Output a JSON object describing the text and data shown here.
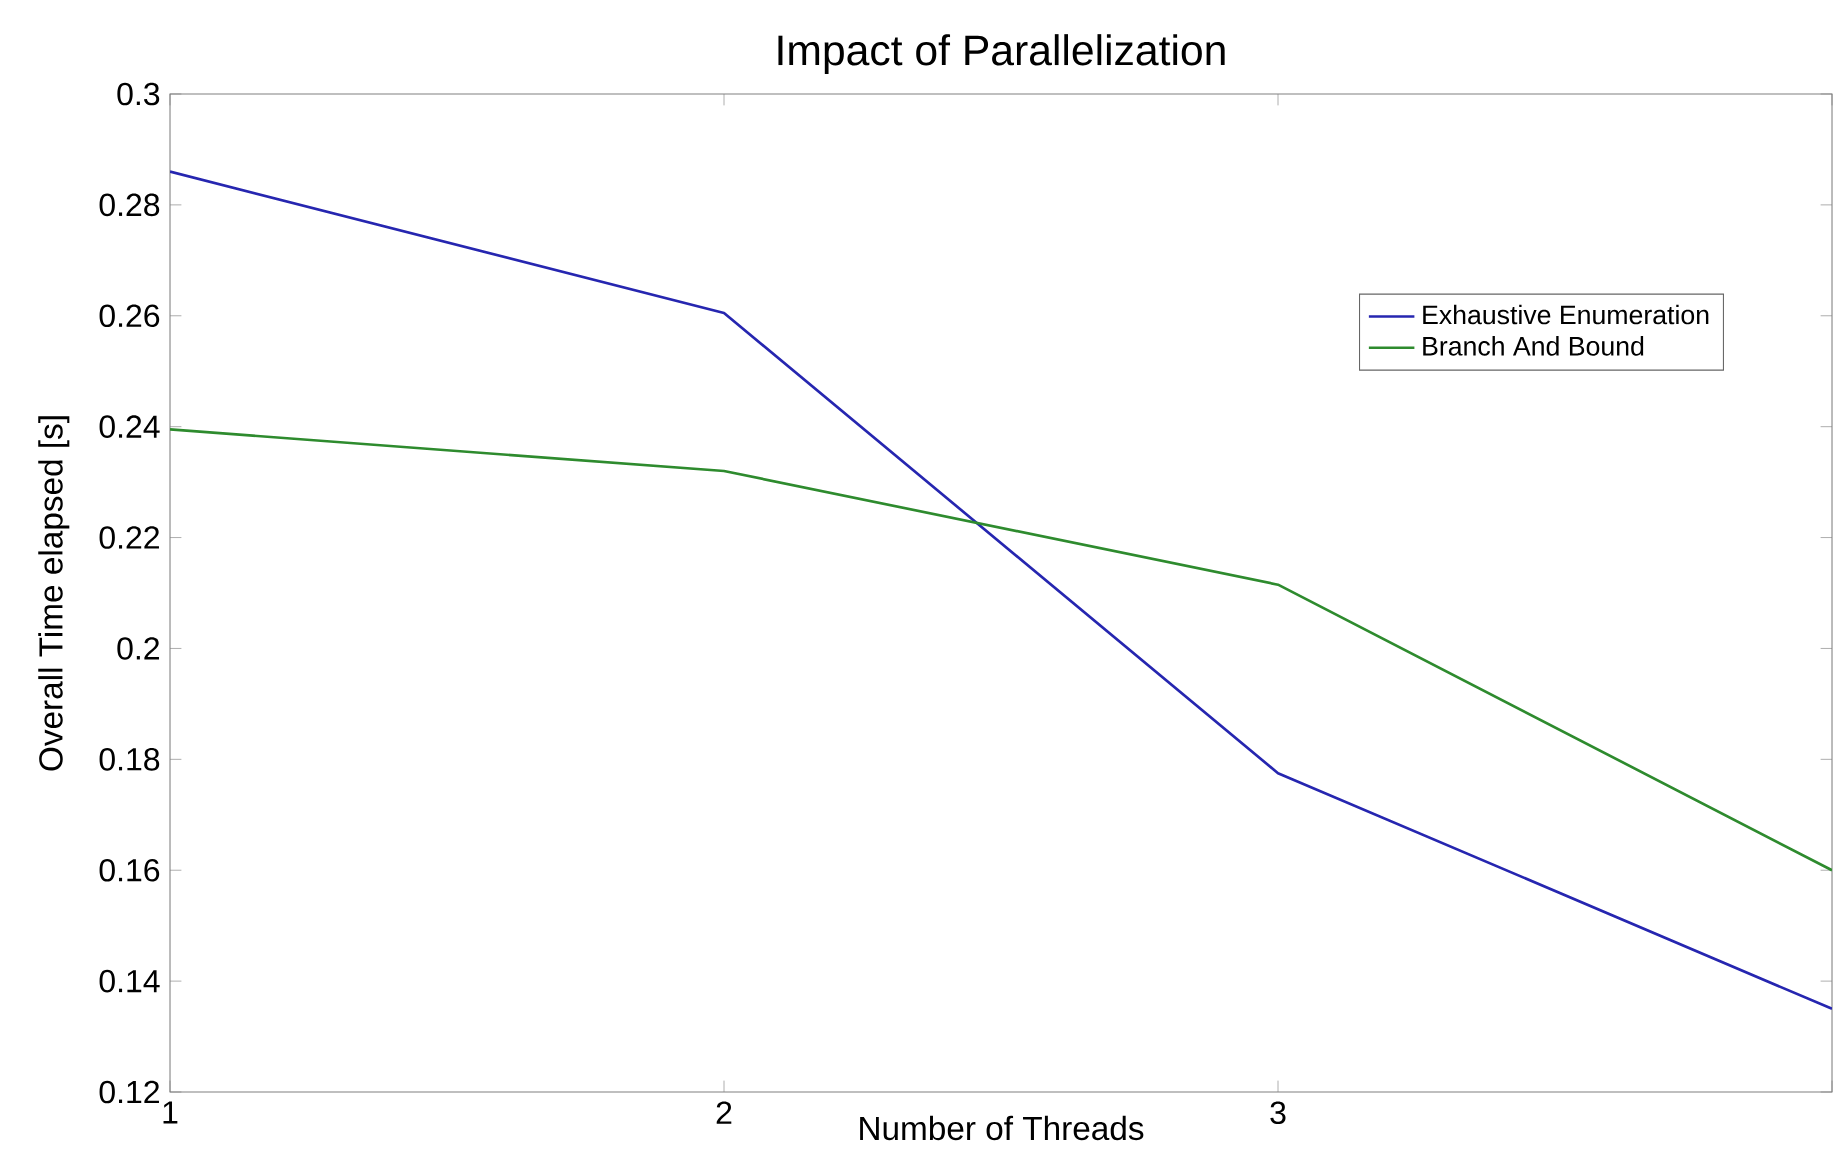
{
  "chart_data": {
    "type": "line",
    "title": "Impact of Parallelization",
    "xlabel": "Number of Threads",
    "ylabel": "Overall Time elapsed [s]",
    "x": [
      1,
      2,
      3,
      4
    ],
    "series": [
      {
        "name": "Exhaustive Enumeration",
        "color": "#2626b0",
        "values": [
          0.286,
          0.2605,
          0.1775,
          0.135
        ]
      },
      {
        "name": "Branch And Bound",
        "color": "#2e8b2e",
        "values": [
          0.2395,
          0.232,
          0.2115,
          0.16
        ]
      }
    ],
    "xlim": [
      1,
      4
    ],
    "ylim": [
      0.12,
      0.3
    ],
    "xticks": [
      1,
      2,
      3,
      {
        "value": 4,
        "label": null
      }
    ],
    "yticks": [
      0.12,
      0.14,
      0.16,
      0.18,
      0.2,
      0.22,
      0.24,
      0.26,
      0.28,
      0.3
    ],
    "grid": false,
    "legend": "top right",
    "marker": "none",
    "line_style": "solid"
  }
}
